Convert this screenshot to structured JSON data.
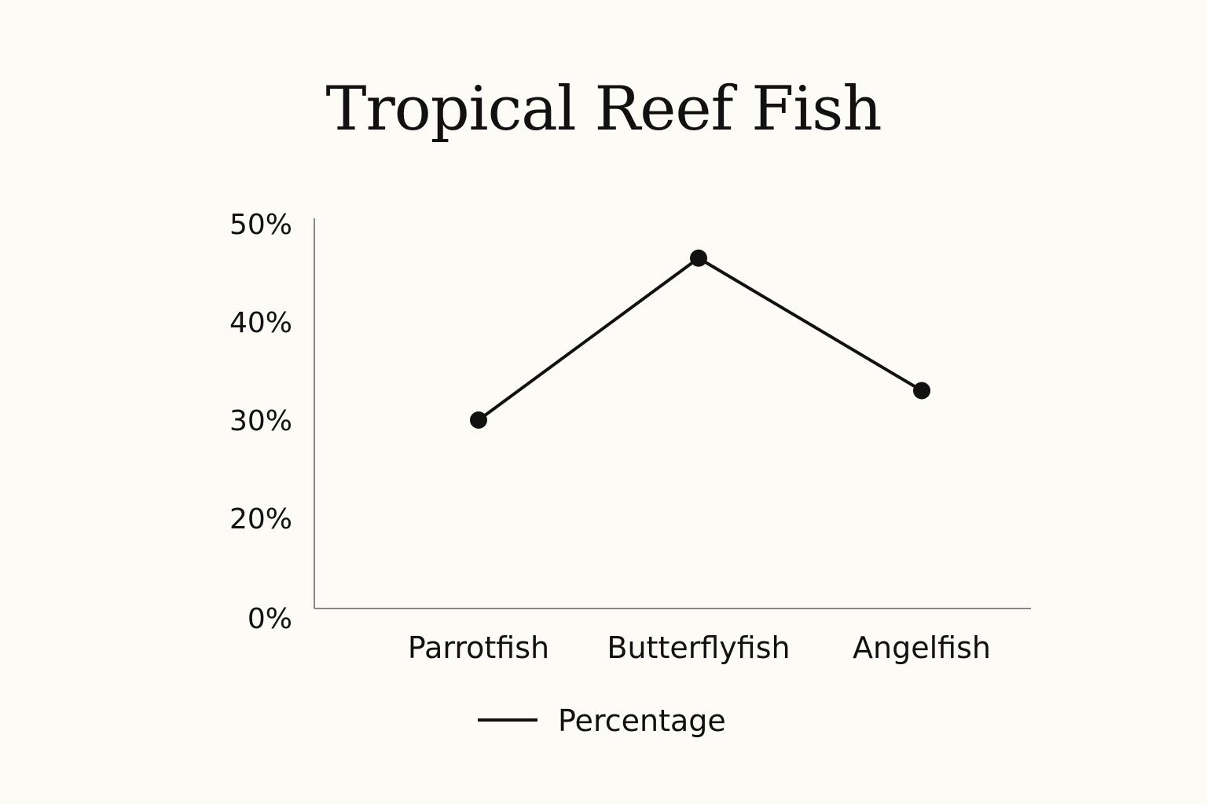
{
  "chart_data": {
    "type": "line",
    "title": "Tropical Reef Fish",
    "categories": [
      "Parrotfish",
      "Butterflyfish",
      "Angelfish"
    ],
    "series": [
      {
        "name": "Percentage",
        "values": [
          30,
          46.5,
          33
        ],
        "color": "#111111"
      }
    ],
    "y_ticks": [
      {
        "value": 0,
        "label": "0%"
      },
      {
        "value": 20,
        "label": "20%"
      },
      {
        "value": 30,
        "label": "30%"
      },
      {
        "value": 40,
        "label": "40%"
      },
      {
        "value": 50,
        "label": "50%"
      }
    ],
    "ylim": [
      0,
      50
    ],
    "xlabel": "",
    "ylabel": "",
    "grid": false,
    "legend_position": "bottom-center",
    "axis_color": "#888888",
    "background": "#fcfbf6"
  }
}
